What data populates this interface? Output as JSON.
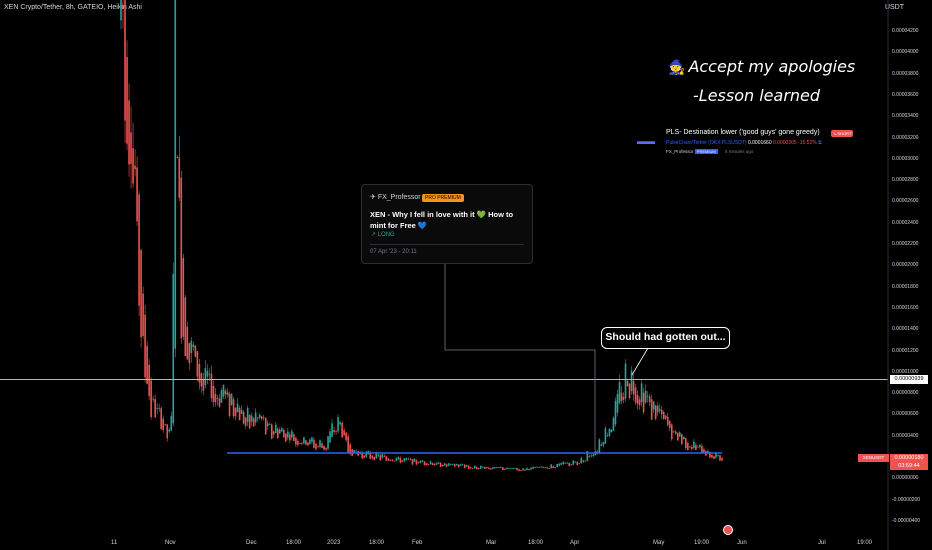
{
  "header": {
    "title": "XEN Crypto/Tether, 8h, GATEIO, Heikin Ashi",
    "currency": "USDT"
  },
  "annotations": {
    "apology_icon": "avatar-icon",
    "apology": "Accept my apologies",
    "lesson": "-Lesson learned",
    "callout": "Should had gotten out..."
  },
  "idea1": {
    "author": "FX_Professor",
    "badge": "PRO PREMIUM",
    "headline": "XEN - Why I fell in love with it 💚 How to mint for Free 💙",
    "direction": "↗ LONG",
    "date": "07 Apr '23 - 20:11"
  },
  "idea2": {
    "headline": "PLS- Destination lower ('good guys' gone greedy)",
    "direction": "↘ SHORT",
    "symbol": "PulseChain/Tether (OKX:PLSUSDT)",
    "price": "0.0001660",
    "change": "0.0000305",
    "change_pct": "-15.52%",
    "author": "FX_Professor",
    "badge": "PREMIUM",
    "time": "5 minutes ago"
  },
  "price_labels": {
    "crosshair": "0.00000939",
    "symbol": "XENUSDT",
    "current": "0.00000180",
    "countdown": "03:59:44"
  },
  "chart_data": {
    "type": "candlestick (Heikin Ashi)",
    "title": "XEN Crypto/Tether, 8h, GATEIO, Heikin Ashi",
    "y_axis_ticks": [
      "0.00004200",
      "0.00004000",
      "0.00003800",
      "0.00003600",
      "0.00003400",
      "0.00003200",
      "0.00003000",
      "0.00002800",
      "0.00002600",
      "0.00002400",
      "0.00002200",
      "0.00002000",
      "0.00001800",
      "0.00001600",
      "0.00001400",
      "0.00001200",
      "0.00001000",
      "0.00000800",
      "0.00000600",
      "0.00000400",
      "0.00000200",
      "0.00000000",
      "-0.00000200",
      "-0.00000400"
    ],
    "y_range": [
      -4.2e-06,
      4.34e-05
    ],
    "x_axis_ticks": [
      "11",
      "Nov",
      "Dec",
      "18:00",
      "2023",
      "18:00",
      "Feb",
      "Mar",
      "18:00",
      "Apr",
      "May",
      "19:00",
      "Jun",
      "Jul",
      "19:00"
    ],
    "horizontal_lines": [
      {
        "value": 9.39e-06,
        "color": "#b2b5be"
      },
      {
        "value": 2.4e-06,
        "color": "#2962ff"
      }
    ],
    "price_path": [
      [
        0,
        4.3e-05
      ],
      [
        0.02,
        3e-05
      ],
      [
        0.035,
        1.3e-05
      ],
      [
        0.05,
        7e-06
      ],
      [
        0.08,
        4e-06
      ],
      [
        0.085,
        6e-06
      ],
      [
        0.09,
        4.3e-05
      ],
      [
        0.1,
        1.5e-05
      ],
      [
        0.12,
        1.1e-05
      ],
      [
        0.15,
        8.5e-06
      ],
      [
        0.2,
        6e-06
      ],
      [
        0.25,
        4.5e-06
      ],
      [
        0.3,
        3.5e-06
      ],
      [
        0.34,
        3e-06
      ],
      [
        0.36,
        5.5e-06
      ],
      [
        0.38,
        2.5e-06
      ],
      [
        0.45,
        1.8e-06
      ],
      [
        0.55,
        1.2e-06
      ],
      [
        0.6,
        1e-06
      ],
      [
        0.67,
        8e-07
      ],
      [
        0.72,
        1.2e-06
      ],
      [
        0.76,
        1.5e-06
      ],
      [
        0.79,
        2.8e-06
      ],
      [
        0.81,
        4.5e-06
      ],
      [
        0.83,
        8e-06
      ],
      [
        0.84,
        9.5e-06
      ],
      [
        0.86,
        8e-06
      ],
      [
        0.89,
        6e-06
      ],
      [
        0.92,
        4e-06
      ],
      [
        0.95,
        3e-06
      ],
      [
        0.98,
        2.3e-06
      ],
      [
        1.0,
        1.8e-06
      ]
    ],
    "colors": {
      "up": "#26a69a",
      "down": "#ef5350"
    }
  }
}
